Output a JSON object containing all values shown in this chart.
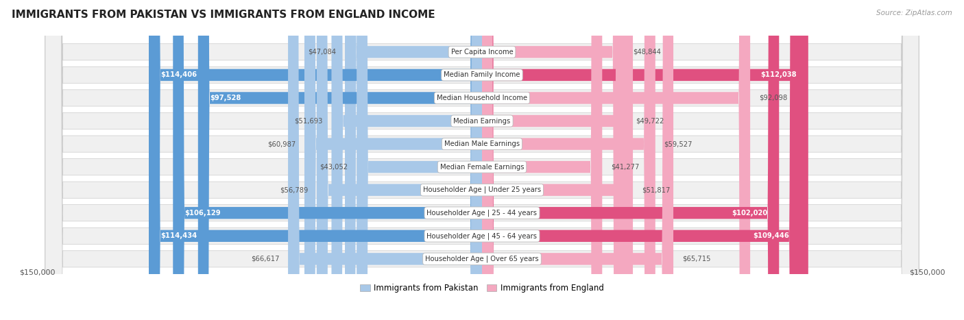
{
  "title": "IMMIGRANTS FROM PAKISTAN VS IMMIGRANTS FROM ENGLAND INCOME",
  "source": "Source: ZipAtlas.com",
  "categories": [
    "Per Capita Income",
    "Median Family Income",
    "Median Household Income",
    "Median Earnings",
    "Median Male Earnings",
    "Median Female Earnings",
    "Householder Age | Under 25 years",
    "Householder Age | 25 - 44 years",
    "Householder Age | 45 - 64 years",
    "Householder Age | Over 65 years"
  ],
  "pakistan_values": [
    47084,
    114406,
    97528,
    51693,
    60987,
    43052,
    56789,
    106129,
    114434,
    66617
  ],
  "england_values": [
    48844,
    112038,
    92098,
    49722,
    59527,
    41277,
    51817,
    102020,
    109446,
    65715
  ],
  "pakistan_color_light": "#a8c8e8",
  "pakistan_color_dark": "#5b9bd5",
  "england_color_light": "#f4a8c0",
  "england_color_dark": "#e05080",
  "max_val": 150000,
  "label_pakistan": "Immigrants from Pakistan",
  "label_england": "Immigrants from England",
  "background_color": "#ffffff",
  "row_bg_color": "#f0f0f0",
  "axis_label_left": "$150,000",
  "axis_label_right": "$150,000",
  "threshold": 0.62
}
